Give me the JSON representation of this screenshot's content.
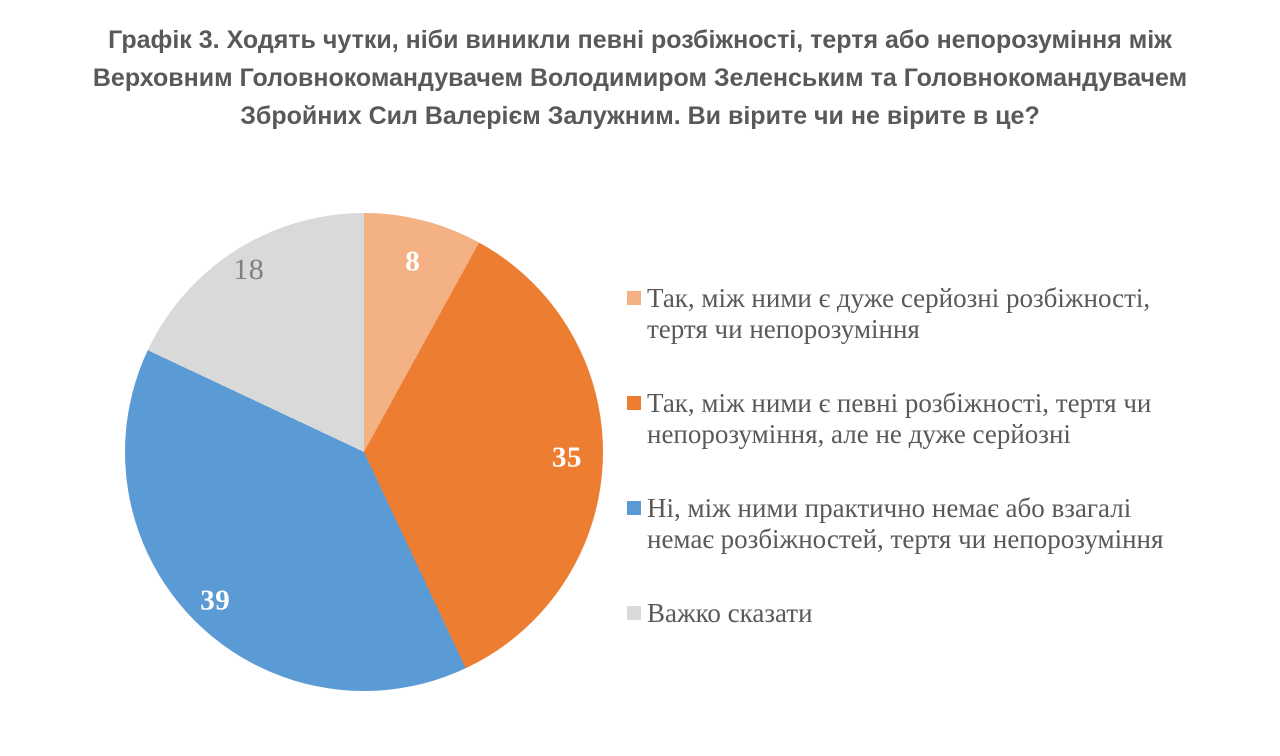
{
  "colors": {
    "background": "#FFFFFF",
    "title_text": "#595959",
    "legend_text": "#595959"
  },
  "chart_data": {
    "type": "pie",
    "title": "Графік 3. Ходять чутки, ніби виникли певні розбіжності, тертя або непорозуміння між\nВерховним Головнокомандувачем Володимиром Зеленським та Головнокомандувачем\nЗбройних Сил Валерієм Залужним. Ви вірите чи не вірите в це?",
    "start_angle_deg": 0,
    "direction": "clockwise",
    "total": 100,
    "legend_position": "right",
    "grid": false,
    "slices": [
      {
        "legend_label": "Так, між ними є дуже серйозні розбіжності,\nтертя чи непорозуміння",
        "value": 8,
        "color": "#F4B183",
        "value_label_color": "#FFFFFF",
        "value_label_bold": true
      },
      {
        "legend_label": "Так, між ними є певні розбіжності, тертя чи\nнепорозуміння, але не дуже серйозні",
        "value": 35,
        "color": "#ED7D31",
        "value_label_color": "#FFFFFF",
        "value_label_bold": true
      },
      {
        "legend_label": "Ні, між ними практично немає або взагалі\nнемає розбіжностей, тертя чи непорозуміння",
        "value": 39,
        "color": "#5B9BD5",
        "value_label_color": "#FFFFFF",
        "value_label_bold": true
      },
      {
        "legend_label": "Важко сказати",
        "value": 18,
        "color": "#D9D9D9",
        "value_label_color": "#808080",
        "value_label_bold": false
      }
    ]
  }
}
